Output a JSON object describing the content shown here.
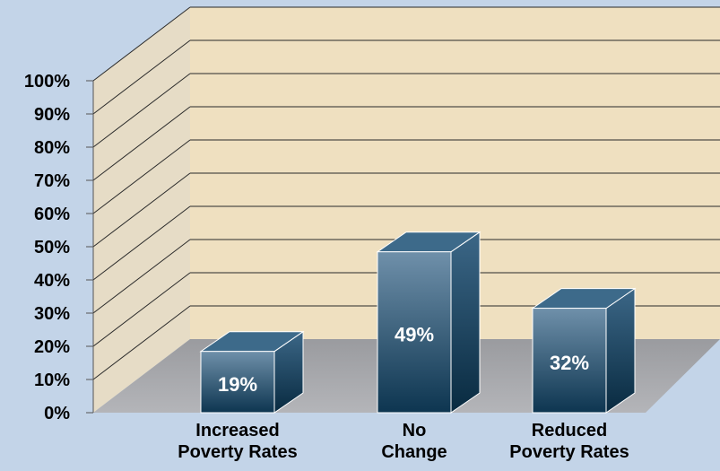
{
  "chart_data": {
    "type": "bar",
    "categories": [
      "Increased\nPoverty Rates",
      "No\nChange",
      "Reduced\nPoverty Rates"
    ],
    "values": [
      19,
      49,
      32
    ],
    "data_labels": [
      "19%",
      "49%",
      "32%"
    ],
    "ylim": [
      0,
      100
    ],
    "yticks": [
      0,
      10,
      20,
      30,
      40,
      50,
      60,
      70,
      80,
      90,
      100
    ],
    "ytick_labels": [
      "0%",
      "10%",
      "20%",
      "30%",
      "40%",
      "50%",
      "60%",
      "70%",
      "80%",
      "90%",
      "100%"
    ],
    "grid": true,
    "legend": "none",
    "title": "",
    "xlabel": "",
    "ylabel": ""
  },
  "colors": {
    "background": "#c3d4e8",
    "back_wall": "#efe0c0",
    "side_wall": "#e6dcc6",
    "floor": "#a9aaae",
    "bar_front_top": "#6f90aa",
    "bar_front_bottom": "#0d3550",
    "bar_side": "#0e3a57",
    "bar_top": "#3d6a8a",
    "label_text": "#000000",
    "value_text": "#ffffff"
  }
}
